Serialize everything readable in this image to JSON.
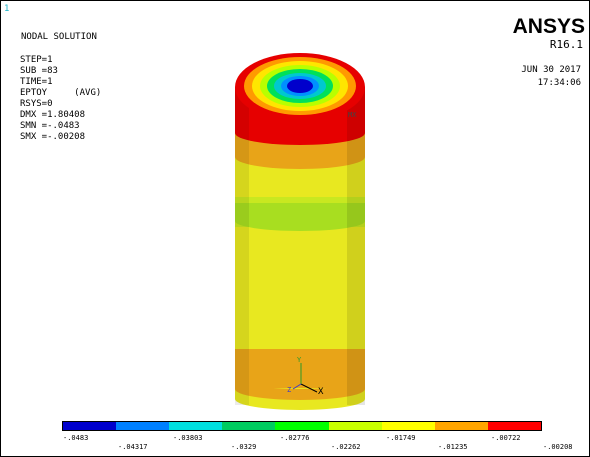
{
  "window": {
    "number": "1"
  },
  "header": {
    "title": "NODAL SOLUTION",
    "brand": "ANSYS",
    "release": "R16.1",
    "date": "JUN 30 2017",
    "time": "17:34:06"
  },
  "stats": [
    "STEP=1",
    "SUB =83",
    "TIME=1",
    "EPTOY     (AVG)",
    "RSYS=0",
    "DMX =1.80408",
    "SMN =-.0483",
    "SMX =-.00208"
  ],
  "viewport": {
    "mx_label": "MX",
    "triad": {
      "x_label": "X",
      "y_label": "Y",
      "z_label": "Z"
    }
  },
  "legend": {
    "colors": [
      "#0000cc",
      "#0080ff",
      "#00e0e0",
      "#00cc60",
      "#00ff00",
      "#c8ff00",
      "#ffff00",
      "#ffa500",
      "#ff0000"
    ],
    "labels_top": [
      "-.0483",
      "-.03803",
      "-.02776",
      "-.01749",
      "-.00722"
    ],
    "labels_bottom": [
      "-.04317",
      "-.0329",
      "-.02262",
      "-.01235",
      "-.00208"
    ]
  },
  "model_colors": {
    "cap_red": "#e60000",
    "cap_orange": "#ff9a00",
    "cap_yellow": "#ffe600",
    "cap_yellowgreen": "#b8ff00",
    "cap_green": "#00e05a",
    "cap_cyan": "#00c8d0",
    "cap_lightblue": "#0090ff",
    "cap_blue": "#0000cc",
    "body_yellow": "#e8e820",
    "body_orange": "#e8a418",
    "body_green": "#a8de20"
  }
}
